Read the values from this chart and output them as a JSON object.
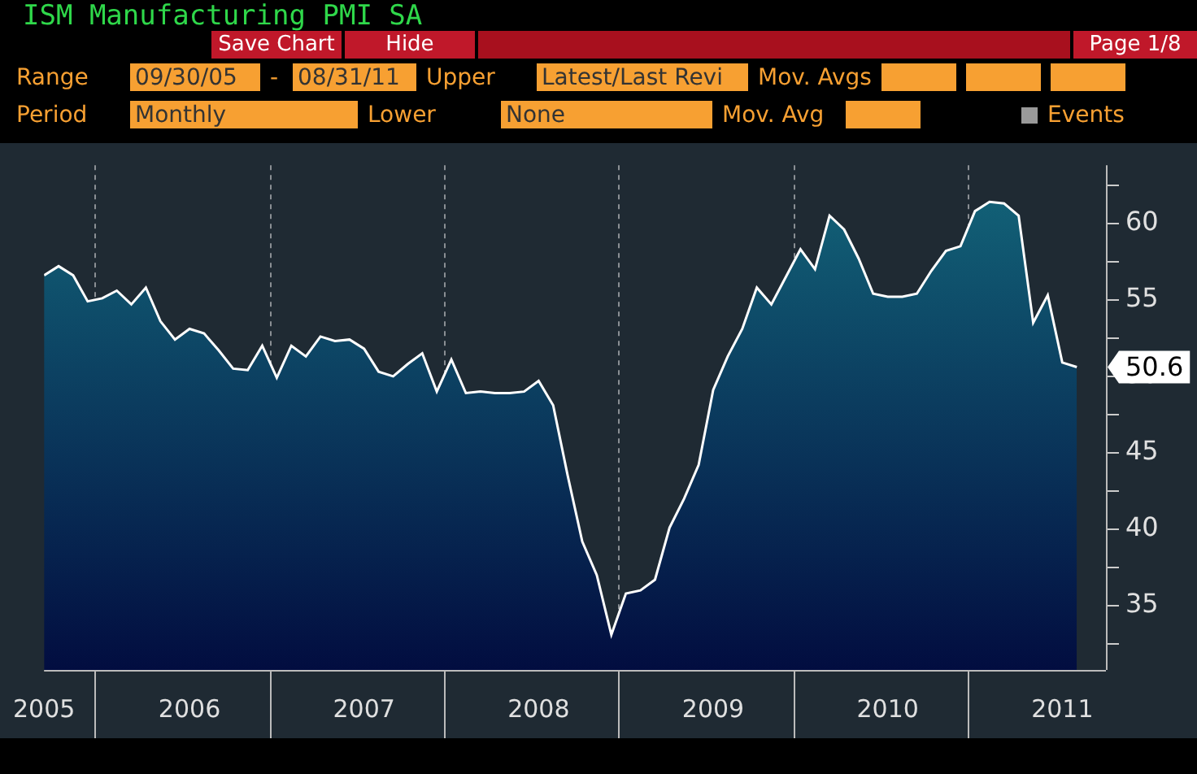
{
  "chart_data": {
    "type": "area",
    "title": "ISM Manufacturing PMI SA",
    "annotations": [
      "Save Chart",
      "Hide",
      "Page 1/8",
      "Range",
      "09/30/05",
      "-",
      "08/31/11",
      "Upper",
      "Latest/Last Revi",
      "Mov. Avgs",
      "Period",
      "Monthly",
      "Lower",
      "None",
      "Mov. Avg",
      "Events",
      {
        "text": "50.6",
        "x": "2011-08",
        "y": 50.6
      }
    ],
    "x": [
      "2005-09",
      "2005-10",
      "2005-11",
      "2005-12",
      "2006-01",
      "2006-02",
      "2006-03",
      "2006-04",
      "2006-05",
      "2006-06",
      "2006-07",
      "2006-08",
      "2006-09",
      "2006-10",
      "2006-11",
      "2006-12",
      "2007-01",
      "2007-02",
      "2007-03",
      "2007-04",
      "2007-05",
      "2007-06",
      "2007-07",
      "2007-08",
      "2007-09",
      "2007-10",
      "2007-11",
      "2007-12",
      "2008-01",
      "2008-02",
      "2008-03",
      "2008-04",
      "2008-05",
      "2008-06",
      "2008-07",
      "2008-08",
      "2008-09",
      "2008-10",
      "2008-11",
      "2008-12",
      "2009-01",
      "2009-02",
      "2009-03",
      "2009-04",
      "2009-05",
      "2009-06",
      "2009-07",
      "2009-08",
      "2009-09",
      "2009-10",
      "2009-11",
      "2009-12",
      "2010-01",
      "2010-02",
      "2010-03",
      "2010-04",
      "2010-05",
      "2010-06",
      "2010-07",
      "2010-08",
      "2010-09",
      "2010-10",
      "2010-11",
      "2010-12",
      "2011-01",
      "2011-02",
      "2011-03",
      "2011-04",
      "2011-05",
      "2011-06",
      "2011-07",
      "2011-08"
    ],
    "series": [
      {
        "color": "#13667a",
        "values": [
          56.6,
          57.2,
          56.6,
          54.9,
          55.1,
          55.6,
          54.7,
          55.8,
          53.6,
          52.4,
          53.1,
          52.8,
          51.7,
          50.5,
          50.4,
          52.0,
          49.9,
          52.0,
          51.3,
          52.6,
          52.3,
          52.4,
          51.8,
          50.3,
          50.0,
          50.8,
          51.5,
          49.0,
          51.1,
          48.9,
          49.0,
          48.9,
          48.9,
          49.0,
          49.7,
          48.1,
          43.5,
          39.2,
          37.0,
          33.1,
          35.8,
          36.0,
          36.7,
          40.1,
          42.0,
          44.2,
          49.1,
          51.3,
          53.1,
          55.8,
          54.7,
          56.5,
          58.3,
          57.0,
          60.5,
          59.6,
          57.7,
          55.4,
          55.2,
          55.2,
          55.4,
          56.9,
          58.2,
          58.5,
          60.8,
          61.4,
          61.3,
          60.5,
          53.5,
          55.3,
          50.9,
          50.6
        ]
      }
    ],
    "xlim": [
      "2005-09",
      "2011-10"
    ],
    "xticks": [
      {
        "value": "2005-09",
        "label": "2005"
      },
      {
        "value": "2006-07",
        "label": "2006"
      },
      {
        "value": "2007-07",
        "label": "2007"
      },
      {
        "value": "2008-07",
        "label": "2008"
      },
      {
        "value": "2009-07",
        "label": "2009"
      },
      {
        "value": "2010-07",
        "label": "2010"
      },
      {
        "value": "2011-07",
        "label": "2011"
      }
    ],
    "ylim": [
      30.8,
      63.8
    ],
    "yticks": [
      {
        "value": 32.5,
        "label": null
      },
      35,
      {
        "value": 37.5,
        "label": null
      },
      40,
      {
        "value": 42.5,
        "label": null
      },
      45,
      {
        "value": 47.5,
        "label": null
      },
      50,
      {
        "value": 52.5,
        "label": null
      },
      55,
      {
        "value": 57.5,
        "label": null
      },
      60,
      {
        "value": 62.5,
        "label": null
      }
    ],
    "grid": true,
    "legend": false
  }
}
